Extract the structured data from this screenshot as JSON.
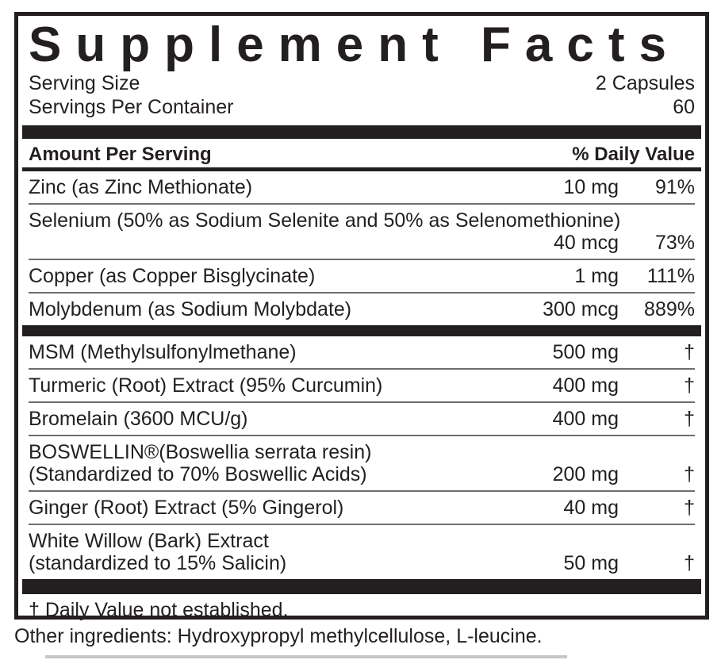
{
  "title": "Supplement Facts",
  "serving": {
    "size_label": "Serving Size",
    "size_value": "2 Capsules",
    "per_container_label": "Servings Per Container",
    "per_container_value": "60"
  },
  "table_header": {
    "amount_label": "Amount Per Serving",
    "dv_label": "% Daily Value"
  },
  "rows": [
    {
      "name": "Zinc (as Zinc Methionate)",
      "amount": "10 mg",
      "dv": "91%"
    },
    {
      "name": "Selenium (50% as Sodium Selenite and 50% as Selenomethionine)",
      "amount": "40 mcg",
      "dv": "73%"
    },
    {
      "name": "Copper (as Copper Bisglycinate)",
      "amount": "1 mg",
      "dv": "111%"
    },
    {
      "name": "Molybdenum (as Sodium Molybdate)",
      "amount": "300 mcg",
      "dv": "889%"
    },
    {
      "name": "MSM (Methylsulfonylmethane)",
      "amount": "500 mg",
      "dv": "†"
    },
    {
      "name": "Turmeric (Root) Extract (95% Curcumin)",
      "amount": "400 mg",
      "dv": "†"
    },
    {
      "name": "Bromelain  (3600 MCU/g)",
      "amount": "400 mg",
      "dv": "†"
    },
    {
      "name": "BOSWELLIN®(Boswellia serrata resin)",
      "name2": "(Standardized to 70% Boswellic Acids)",
      "amount": "200 mg",
      "dv": "†"
    },
    {
      "name": "Ginger (Root) Extract (5% Gingerol)",
      "amount": "40 mg",
      "dv": "†"
    },
    {
      "name": "White Willow (Bark) Extract",
      "name2": "(standardized to 15% Salicin)",
      "amount": "50 mg",
      "dv": "†"
    }
  ],
  "footnote": "† Daily Value not established.",
  "other_ingredients": "Other ingredients: Hydroxypropyl methylcellulose, L-leucine.",
  "colors": {
    "ink": "#231f20",
    "thin_rule": "#6e6e6e"
  }
}
